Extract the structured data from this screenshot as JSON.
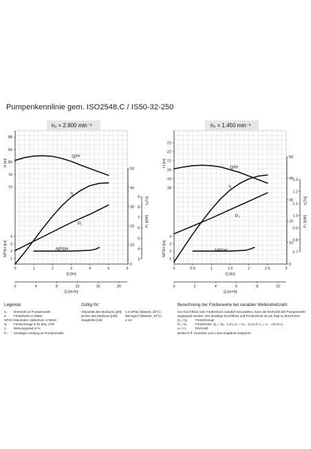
{
  "page": {
    "title": "Pumpenkennlinie gem. ISO2548,C / IS50-32-250"
  },
  "chart_data": [
    {
      "type": "line",
      "title": "n₀ = 2.900 min⁻¹",
      "xlabel": "Q [l/s]",
      "x2label": "Q [m³/h]",
      "xlim": [
        0,
        6
      ],
      "x_ticks": [
        "0",
        "1",
        "2",
        "3",
        "4",
        "5",
        "6"
      ],
      "x2_ticks": [
        "0",
        "4",
        "8",
        "12",
        "16",
        "20"
      ],
      "h_ylabel": "H [m]",
      "h_ticks": [
        "72",
        "76",
        "80",
        "84",
        "88"
      ],
      "npsh_ylabel": "NPSH [m]",
      "npsh_ticks": [
        "1",
        "2",
        "3",
        "4"
      ],
      "eta_ylabel": "η [%]",
      "eta_ticks": [
        "0",
        "10",
        "20",
        "30",
        "40",
        "50"
      ],
      "p_ylabel": "P₁ [kW]",
      "p_ticks": [
        "3",
        "4",
        "5",
        "6",
        "7",
        "8",
        "9"
      ],
      "series": [
        {
          "name": "Q/H",
          "x": [
            0,
            0.5,
            1,
            1.5,
            2,
            2.5,
            3,
            3.5,
            4,
            4.5,
            5
          ],
          "y": [
            80.5,
            81.4,
            81.9,
            82.0,
            81.8,
            81.1,
            80.2,
            79.0,
            77.9,
            76.8,
            75.7
          ]
        },
        {
          "name": "η",
          "x": [
            0,
            0.5,
            1,
            1.5,
            2,
            2.5,
            3,
            3.5,
            4,
            4.5,
            5
          ],
          "y": [
            0,
            6,
            12.5,
            19,
            25,
            30.5,
            35,
            38.5,
            41,
            42.2,
            42.5
          ]
        },
        {
          "name": "P₁",
          "x": [
            0,
            1,
            2,
            3,
            4,
            5
          ],
          "y": [
            3.8,
            4.7,
            5.6,
            6.5,
            7.3,
            8.2
          ]
        },
        {
          "name": "NPSH",
          "x": [
            1,
            2,
            3,
            4,
            4.3,
            4.5
          ],
          "y": [
            2.0,
            2.0,
            2.0,
            2.1,
            2.25,
            2.5
          ]
        }
      ]
    },
    {
      "type": "line",
      "title": "n₀ = 1.450 min⁻¹",
      "xlabel": "Q [l/s]",
      "x2label": "Q [m³/h]",
      "xlim": [
        0,
        3
      ],
      "x_ticks": [
        "0",
        "0.5",
        "1",
        "1.5",
        "2",
        "2.5",
        "3"
      ],
      "x2_ticks": [
        "0",
        "2",
        "4",
        "6",
        "8",
        "10"
      ],
      "h_ylabel": "H [m]",
      "h_ticks": [
        "18",
        "19",
        "20",
        "21",
        "22",
        "23"
      ],
      "npsh_ylabel": "NPSH [m]",
      "npsh_ticks": [
        "1",
        "2",
        "3",
        "4"
      ],
      "eta_ylabel": "η [%]",
      "eta_ticks": [
        "0",
        "10",
        "20",
        "30",
        "40",
        "50"
      ],
      "p_ylabel": "P₁ [kW]",
      "p_ticks": [
        "0.7",
        "0.8",
        "0.9",
        "1.0",
        "1.1",
        "1.2",
        "1.3"
      ],
      "series": [
        {
          "name": "Q/H",
          "x": [
            0,
            0.25,
            0.5,
            0.75,
            1,
            1.25,
            1.5,
            1.75,
            2,
            2.25,
            2.5
          ],
          "y": [
            20.1,
            20.3,
            20.45,
            20.5,
            20.45,
            20.3,
            20.0,
            19.7,
            19.3,
            18.9,
            18.5
          ]
        },
        {
          "name": "η",
          "x": [
            0,
            0.25,
            0.5,
            0.75,
            1,
            1.25,
            1.5,
            1.75,
            2,
            2.25,
            2.5
          ],
          "y": [
            1,
            7.5,
            14,
            20,
            25.5,
            30.5,
            34.5,
            37.5,
            39.7,
            41,
            41.5
          ]
        },
        {
          "name": "P₁",
          "x": [
            0,
            0.5,
            1,
            1.5,
            2,
            2.5
          ],
          "y": [
            0.85,
            0.915,
            0.98,
            1.05,
            1.12,
            1.19
          ]
        },
        {
          "name": "NPSH",
          "x": [
            0.5,
            1,
            1.5,
            1.9,
            2.05,
            2.15
          ],
          "y": [
            2.0,
            2.0,
            2.0,
            2.1,
            2.3,
            2.5
          ]
        }
      ]
    }
  ],
  "footer": {
    "legend": {
      "heading": "Legende:",
      "rows": [
        {
          "sym": "n₀",
          "text": "Drehzahl an Pumpenwelle"
        },
        {
          "sym": "H",
          "text": "Förderhöhe in Meter"
        },
        {
          "sym": "NPSH",
          "text": "Maximaler Haltedruck in Meter"
        },
        {
          "sym": "Q",
          "text": "Fördermenge in l/s bzw. m³/h"
        },
        {
          "sym": "η",
          "text": "Wirkungsgrad in %"
        },
        {
          "sym": "P₁",
          "text": "benötigte Leistung an Pumpenwelle"
        }
      ]
    },
    "validity": {
      "heading": "Gültig für:",
      "rows": [
        {
          "k": "Viskosität des Mediums [γM]:",
          "v": "1.0 mPas (Wasser, 20°C)"
        },
        {
          "k": "Dichte des Mediums [ρM]:",
          "v": "998 kg/m³ (Wasser, 20°C)"
        },
        {
          "k": "Saughöhe [Hs]:",
          "v": "≤ 1m"
        }
      ]
    },
    "calc": {
      "heading": "Berechnung der Förderwerte bei variabler Wellendrehzahl:",
      "intro1": "Um Durchfluss oder Förderdruck variabel einzustellen, kann die Drehzahl der Pumpenwelle",
      "intro2": "angepasst werden. Der jeweilige Durchfluss und Förderdruck ist wie folgt zu berechnen:",
      "rows": [
        {
          "sym": "Q₀ / Q₁",
          "text": "Fördermenge",
          "f": ""
        },
        {
          "sym": "H₀ / H₁",
          "text": "Förderhöhe",
          "f": "Q₁ = Q₀ · n₁/n₀     H₁ = H₀ · (n₁/n₀)²     n₁ = n₀ · √(H₁/H₀)"
        },
        {
          "sym": "n₀ / n₁",
          "text": "Drehzahl",
          "f": ""
        }
      ],
      "note": "Wobei N ff. Kennlinie und 1 dem Ergebnis entspricht."
    }
  }
}
